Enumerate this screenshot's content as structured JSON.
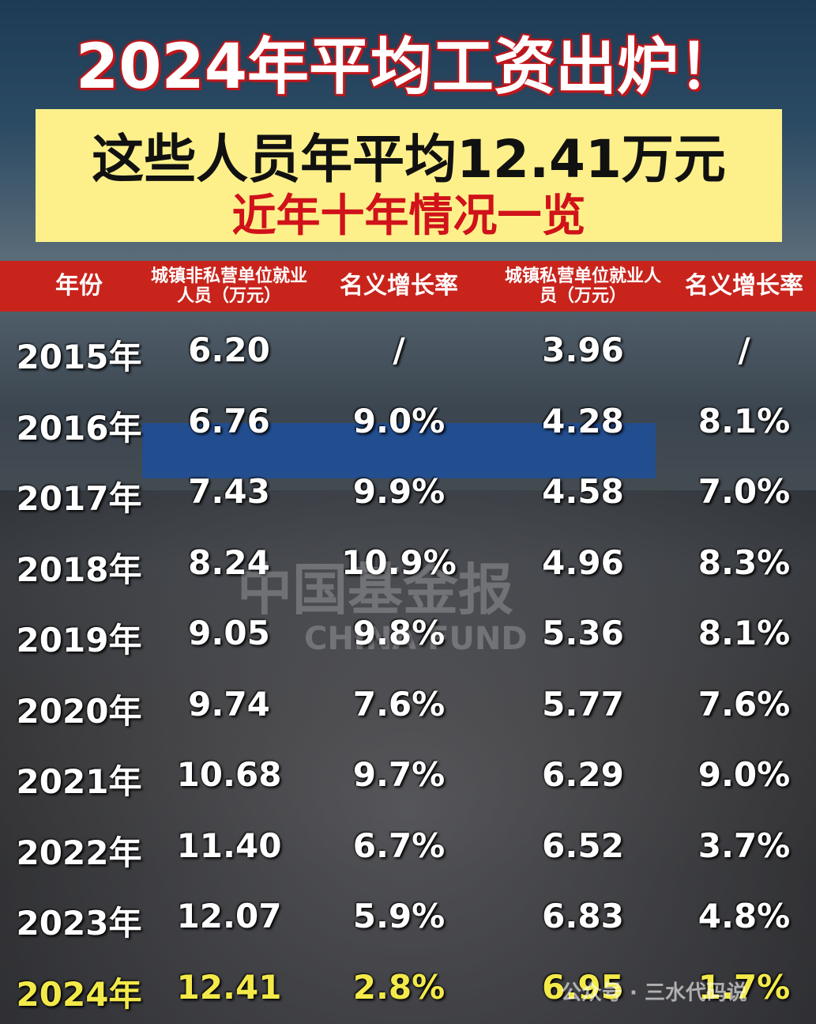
{
  "header": {
    "title": "2024年平均工资出炉！",
    "subtitle": "这些人员年平均12.41万元",
    "subtitle2": "近年十年情况一览"
  },
  "table": {
    "columns": [
      "年份",
      "城镇非私营单位就业人员（万元）",
      "名义增长率",
      "城镇私营单位就业人员（万元）",
      "名义增长率"
    ],
    "rows": [
      [
        "2015年",
        "6.20",
        "/",
        "3.96",
        "/"
      ],
      [
        "2016年",
        "6.76",
        "9.0%",
        "4.28",
        "8.1%"
      ],
      [
        "2017年",
        "7.43",
        "9.9%",
        "4.58",
        "7.0%"
      ],
      [
        "2018年",
        "8.24",
        "10.9%",
        "4.96",
        "8.3%"
      ],
      [
        "2019年",
        "9.05",
        "9.8%",
        "5.36",
        "8.1%"
      ],
      [
        "2020年",
        "9.74",
        "7.6%",
        "5.77",
        "7.6%"
      ],
      [
        "2021年",
        "10.68",
        "9.7%",
        "6.29",
        "9.0%"
      ],
      [
        "2022年",
        "11.40",
        "6.7%",
        "6.52",
        "3.7%"
      ],
      [
        "2023年",
        "12.07",
        "5.9%",
        "6.83",
        "4.8%"
      ],
      [
        "2024年",
        "12.41",
        "2.8%",
        "6.95",
        "1.7%"
      ]
    ]
  },
  "watermark": {
    "cn": "中国基金报",
    "en": "CHINA FUND",
    "account": "公众号 · 三水代码说"
  }
}
